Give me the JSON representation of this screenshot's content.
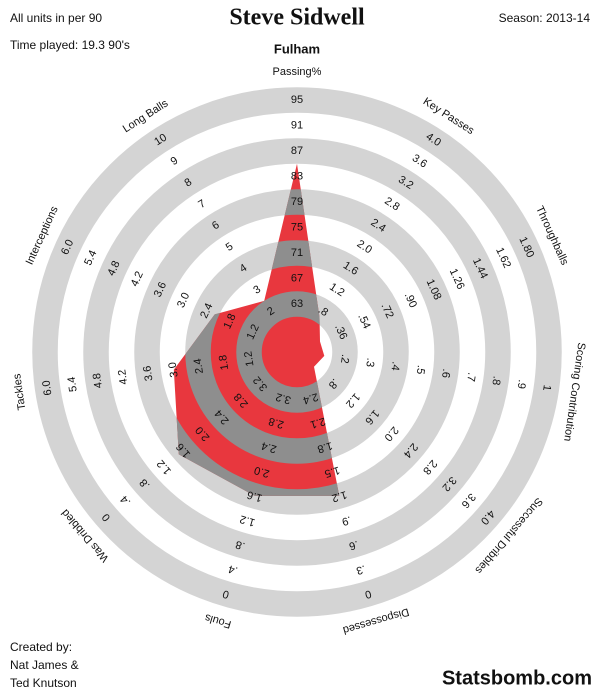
{
  "chart_data": {
    "type": "radar",
    "title": "Steve Sidwell",
    "subtitle": "Fulham",
    "note_units": "All units in per 90",
    "note_time": "Time played: 19.3 90's",
    "season": "Season: 2013-14",
    "credits": [
      "Created by:",
      "Nat James &",
      "Ted Knutson"
    ],
    "brand": "Statsbomb.com",
    "color": "#e8373e",
    "band_color": "#d4d4d4",
    "overlap_color": "#8e8e8e",
    "categories": [
      "Passing%",
      "Key Passes",
      "Throughballs",
      "Scoring Contribution",
      "Successful Dribbles",
      "Dispossessed",
      "Fouls",
      "Was Dribbled",
      "Tackles",
      "Interceptions",
      "Long Balls"
    ],
    "values": [
      85,
      0.7,
      0.2,
      0.12,
      0.4,
      1.2,
      1.6,
      1.5,
      3.0,
      2.2,
      2.5
    ],
    "axes": [
      {
        "lim": [
          59,
          95
        ],
        "ticks": [
          63,
          67,
          71,
          75,
          79,
          83,
          87,
          91,
          95
        ]
      },
      {
        "lim": [
          0.4,
          4.0
        ],
        "ticks": [
          {
            "value": 0.8,
            "label": ".8"
          },
          {
            "value": 1.2,
            "label": "1.2"
          },
          {
            "value": 1.6,
            "label": "1.6"
          },
          {
            "value": 2.0,
            "label": "2.0"
          },
          {
            "value": 2.4,
            "label": "2.4"
          },
          {
            "value": 2.8,
            "label": "2.8"
          },
          {
            "value": 3.2,
            "label": "3.2"
          },
          {
            "value": 3.6,
            "label": "3.6"
          },
          {
            "value": 4.0,
            "label": "4.0"
          }
        ]
      },
      {
        "lim": [
          0.18,
          1.8
        ],
        "ticks": [
          {
            "value": 0.36,
            "label": ".36"
          },
          {
            "value": 0.54,
            "label": ".54"
          },
          {
            "value": 0.72,
            "label": ".72"
          },
          {
            "value": 0.9,
            "label": ".90"
          },
          {
            "value": 1.08,
            "label": "1.08"
          },
          {
            "value": 1.26,
            "label": "1.26"
          },
          {
            "value": 1.44,
            "label": "1.44"
          },
          {
            "value": 1.62,
            "label": "1.62"
          },
          {
            "value": 1.8,
            "label": "1.80"
          }
        ]
      },
      {
        "lim": [
          0.1,
          1
        ],
        "ticks": [
          {
            "value": 0.2,
            "label": ".2"
          },
          {
            "value": 0.3,
            "label": ".3"
          },
          {
            "value": 0.4,
            "label": ".4"
          },
          {
            "value": 0.5,
            "label": ".5"
          },
          {
            "value": 0.6,
            "label": ".6"
          },
          {
            "value": 0.7,
            "label": ".7"
          },
          {
            "value": 0.8,
            "label": ".8"
          },
          {
            "value": 0.9,
            "label": ".9"
          },
          1
        ]
      },
      {
        "lim": [
          0.4,
          4.0
        ],
        "ticks": [
          {
            "value": 0.8,
            "label": ".8"
          },
          {
            "value": 1.2,
            "label": "1.2"
          },
          {
            "value": 1.6,
            "label": "1.6"
          },
          {
            "value": 2.0,
            "label": "2.0"
          },
          {
            "value": 2.4,
            "label": "2.4"
          },
          {
            "value": 2.8,
            "label": "2.8"
          },
          {
            "value": 3.2,
            "label": "3.2"
          },
          {
            "value": 3.6,
            "label": "3.6"
          },
          {
            "value": 4.0,
            "label": "4.0"
          }
        ]
      },
      {
        "lim": [
          2.7,
          0
        ],
        "ticks": [
          2.4,
          2.1,
          1.8,
          1.5,
          1.2,
          {
            "value": 0.9,
            "label": ".9"
          },
          {
            "value": 0.6,
            "label": ".6"
          },
          {
            "value": 0.3,
            "label": ".3"
          },
          0
        ]
      },
      {
        "lim": [
          3.6,
          0
        ],
        "ticks": [
          3.2,
          2.8,
          2.4,
          {
            "value": 2.0,
            "label": "2.0"
          },
          1.6,
          1.2,
          {
            "value": 0.8,
            "label": ".8"
          },
          {
            "value": 0.4,
            "label": ".4"
          },
          0
        ]
      },
      {
        "lim": [
          3.6,
          0
        ],
        "ticks": [
          3.2,
          2.8,
          2.4,
          {
            "value": 2.0,
            "label": "2.0"
          },
          1.6,
          1.2,
          {
            "value": 0.8,
            "label": ".8"
          },
          {
            "value": 0.4,
            "label": ".4"
          },
          0
        ]
      },
      {
        "lim": [
          0.6,
          6.0
        ],
        "ticks": [
          1.2,
          1.8,
          2.4,
          {
            "value": 3.0,
            "label": "3.0"
          },
          3.6,
          4.2,
          4.8,
          5.4,
          {
            "value": 6.0,
            "label": "6.0"
          }
        ]
      },
      {
        "lim": [
          0.6,
          6.0
        ],
        "ticks": [
          1.2,
          1.8,
          2.4,
          {
            "value": 3.0,
            "label": "3.0"
          },
          3.6,
          4.2,
          4.8,
          5.4,
          {
            "value": 6.0,
            "label": "6.0"
          }
        ]
      },
      {
        "lim": [
          1,
          10
        ],
        "ticks": [
          2,
          3,
          4,
          5,
          6,
          7,
          8,
          9,
          10
        ]
      }
    ]
  }
}
